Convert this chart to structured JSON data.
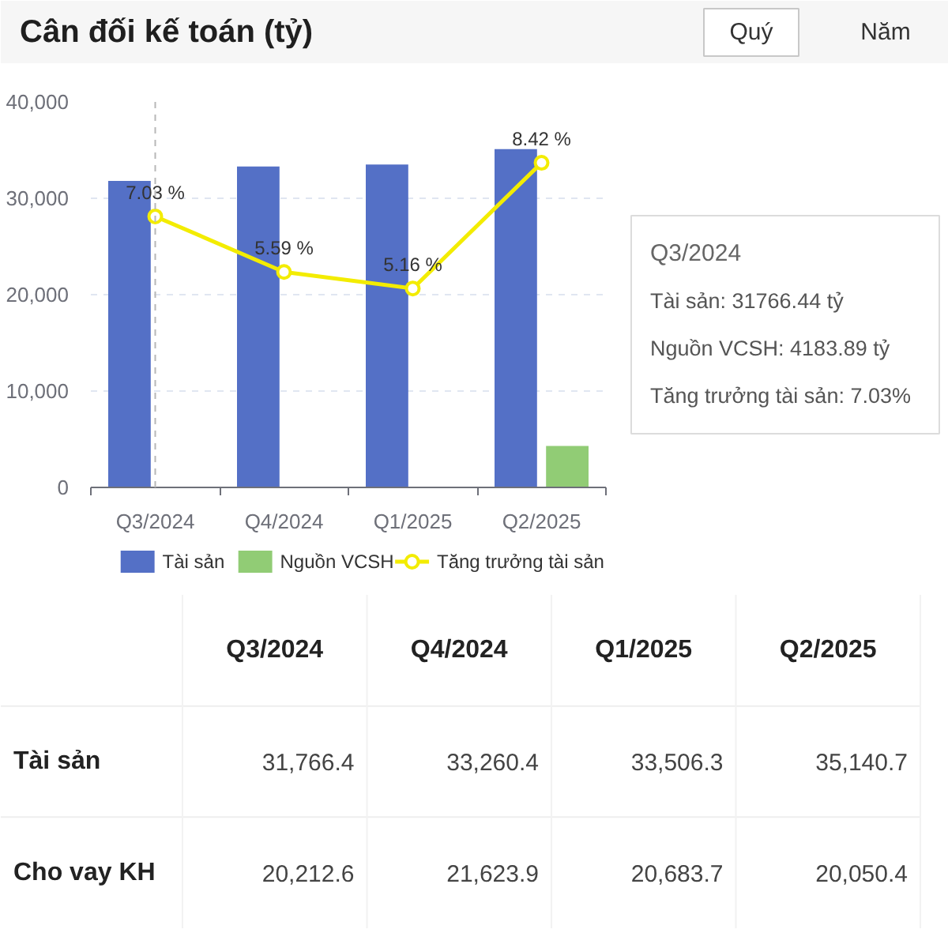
{
  "chart_data": [
    {
      "type": "bar",
      "title": "Cân đối kế toán (tỷ)",
      "categories": [
        "Q3/2024",
        "Q4/2024",
        "Q1/2025",
        "Q2/2025"
      ],
      "series": [
        {
          "name": "Tài sản",
          "color": "#5470c6",
          "values": [
            31800,
            33300,
            33500,
            35100
          ]
        },
        {
          "name": "Nguồn VCSH",
          "color": "#91cc75",
          "values": [
            null,
            null,
            null,
            4300
          ]
        },
        {
          "name": "Tăng trưởng tài sản",
          "type": "line",
          "axis": "y2",
          "marker": "circle",
          "color": "#f3ec00",
          "values": [
            7.03,
            5.59,
            5.16,
            8.42
          ],
          "value_labels": [
            "7.03 %",
            "5.59 %",
            "5.16 %",
            "8.42 %"
          ]
        }
      ],
      "ylim": [
        0,
        40000
      ],
      "yticks": [
        0,
        {
          "value": 10000,
          "label": "10,000"
        },
        {
          "value": 20000,
          "label": "20,000"
        },
        {
          "value": 30000,
          "label": "30,000"
        },
        {
          "value": 40000,
          "label": "40,000"
        }
      ],
      "y2lim": [
        0,
        10
      ],
      "grid": "y",
      "legend": "bottom",
      "ref_lines": [
        {
          "axis": "x",
          "value": "Q3/2024",
          "color": "#b8b8b8",
          "line_style": "dashed"
        }
      ],
      "annotations": [
        "Quý",
        "Năm",
        "Q3/2024",
        "Tài sản: 31766.44 tỷ",
        "Nguồn VCSH: 4183.89 tỷ",
        "Tăng trưởng tài sản: 7.03%"
      ]
    },
    {
      "type": "other",
      "categories": [
        "Q3/2024",
        "Q4/2024",
        "Q1/2025",
        "Q2/2025"
      ],
      "series": [
        {
          "name": "Tài sản",
          "values": [
            31766.4,
            33260.4,
            33506.3,
            35140.7
          ],
          "value_labels": [
            "31,766.4",
            "33,260.4",
            "33,506.3",
            "35,140.7"
          ]
        },
        {
          "name": "Cho vay KH",
          "values": [
            20212.6,
            21623.9,
            20683.7,
            20050.4
          ],
          "value_labels": [
            "20,212.6",
            "21,623.9",
            "20,683.7",
            "20,050.4"
          ]
        }
      ]
    }
  ]
}
